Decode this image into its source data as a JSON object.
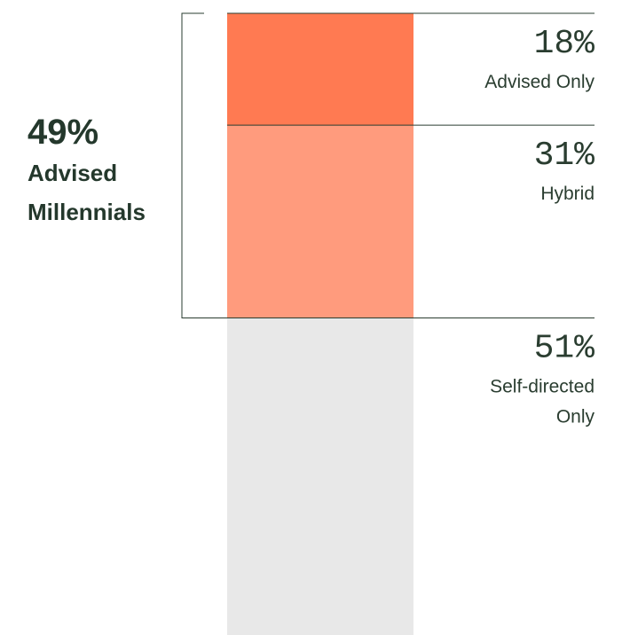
{
  "chart_data": {
    "type": "bar",
    "orientation": "stacked-vertical",
    "categories": [
      "Advised Only",
      "Hybrid",
      "Self-directed Only"
    ],
    "values": [
      18,
      31,
      51
    ],
    "value_labels": [
      "18%",
      "31%",
      "51%"
    ],
    "label_lines": [
      [
        "Advised Only"
      ],
      [
        "Hybrid"
      ],
      [
        "Self-directed",
        "Only"
      ]
    ],
    "colors": [
      "#ff7a52",
      "#ff9b7d",
      "#e8e8e8"
    ],
    "ylim": [
      0,
      100
    ],
    "group": {
      "value": 49,
      "value_label": "49%",
      "label_lines": [
        "Advised",
        "Millennials"
      ],
      "members": [
        "Advised Only",
        "Hybrid"
      ]
    },
    "text_color": "#2a3d30"
  }
}
